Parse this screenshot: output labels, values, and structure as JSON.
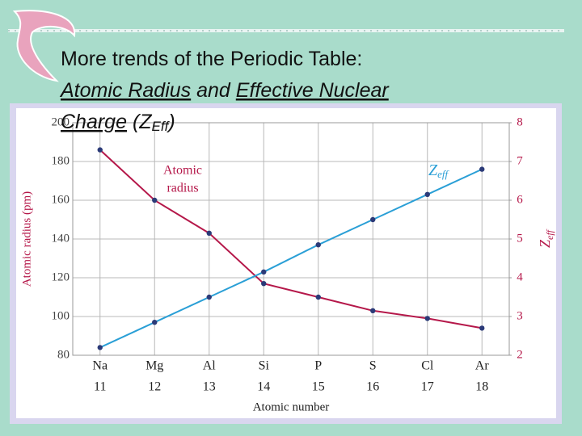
{
  "slide": {
    "title": [
      [
        {
          "text": "More trends of the Periodic Table:"
        }
      ],
      [
        {
          "text": "Atomic Radius",
          "underline": true
        },
        {
          "text": " and "
        },
        {
          "text": "Effective Nuclear",
          "underline": true
        }
      ],
      [
        {
          "text": "Charge",
          "underline": true
        },
        {
          "text": " (Z"
        },
        {
          "text": "Eff",
          "sub": true
        },
        {
          "text": ")"
        }
      ]
    ]
  },
  "chart_data": {
    "type": "line",
    "categories": [
      "Na",
      "Mg",
      "Al",
      "Si",
      "P",
      "S",
      "Cl",
      "Ar"
    ],
    "category_numbers": [
      11,
      12,
      13,
      14,
      15,
      16,
      17,
      18
    ],
    "xlabel": "Atomic number",
    "ylabel": "Atomic radius (pm)",
    "y2label": {
      "text": "Z",
      "sub": "eff"
    },
    "ylim": [
      80,
      200
    ],
    "yticks": [
      80,
      100,
      120,
      140,
      160,
      180,
      200
    ],
    "y2lim": [
      2,
      8
    ],
    "y2ticks": [
      2,
      3,
      4,
      5,
      6,
      7,
      8
    ],
    "grid": true,
    "series": [
      {
        "color": "#b5184a",
        "values": [
          186,
          160,
          143,
          117,
          110,
          103,
          99,
          94
        ]
      },
      {
        "color": "#2a9fd6",
        "axis": "y2",
        "values": [
          2.2,
          2.85,
          3.5,
          4.15,
          4.85,
          5.5,
          6.15,
          6.8
        ]
      }
    ],
    "annotations": [
      {
        "lines": [
          "Atomic",
          "radius"
        ],
        "color": "#b5184a"
      },
      {
        "text": "Z",
        "sub": "eff",
        "color": "#2a9fd6"
      }
    ]
  }
}
